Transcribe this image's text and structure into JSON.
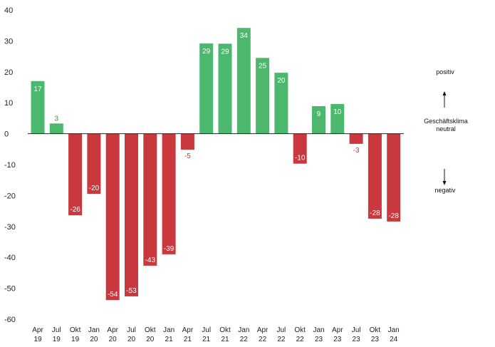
{
  "chart_data": {
    "type": "bar",
    "categories": [
      [
        "Apr",
        "19"
      ],
      [
        "Jul",
        "19"
      ],
      [
        "Okt",
        "19"
      ],
      [
        "Jan",
        "20"
      ],
      [
        "Apr",
        "20"
      ],
      [
        "Jul",
        "20"
      ],
      [
        "Okt",
        "20"
      ],
      [
        "Jan",
        "21"
      ],
      [
        "Apr",
        "21"
      ],
      [
        "Jul",
        "21"
      ],
      [
        "Okt",
        "21"
      ],
      [
        "Jan",
        "22"
      ],
      [
        "Apr",
        "22"
      ],
      [
        "Jul",
        "22"
      ],
      [
        "Okt",
        "22"
      ],
      [
        "Jan",
        "23"
      ],
      [
        "Apr",
        "23"
      ],
      [
        "Jul",
        "23"
      ],
      [
        "Okt",
        "23"
      ],
      [
        "Jan",
        "24"
      ]
    ],
    "values": [
      17,
      3,
      -26,
      -20,
      -54,
      -53,
      -43,
      -39,
      -5,
      29,
      29,
      34,
      25,
      20,
      -10,
      9,
      10,
      -3,
      -28,
      -28
    ],
    "value_labels": [
      "17",
      "3",
      "-26",
      "-20",
      "-54",
      "-53",
      "-43",
      "-39",
      "-5",
      "29",
      "29",
      "34",
      "25",
      "20",
      "-10",
      "9",
      "10",
      "-3",
      "-28",
      "-28"
    ],
    "plotted_values": [
      17,
      3.3,
      -26.4,
      -19.5,
      -53.8,
      -52.6,
      -42.7,
      -39,
      -5.2,
      29.2,
      29.1,
      34.2,
      24.5,
      19.7,
      -9.7,
      8.9,
      9.6,
      -3.3,
      -27.5,
      -28.4
    ],
    "ylim": [
      -60,
      40
    ],
    "yticks": [
      -60,
      -50,
      -40,
      -30,
      -20,
      -10,
      0,
      10,
      20,
      30,
      40
    ],
    "positive_color": "#4cb86e",
    "negative_color": "#c9383d",
    "positive_label_color": "#2e9150",
    "negative_label_color": "#c9383d",
    "grid": false
  },
  "legend": {
    "positiv": "positiv",
    "geschaeftsklima": "Geschäftsklima",
    "neutral": "neutral",
    "negativ": "negativ"
  }
}
